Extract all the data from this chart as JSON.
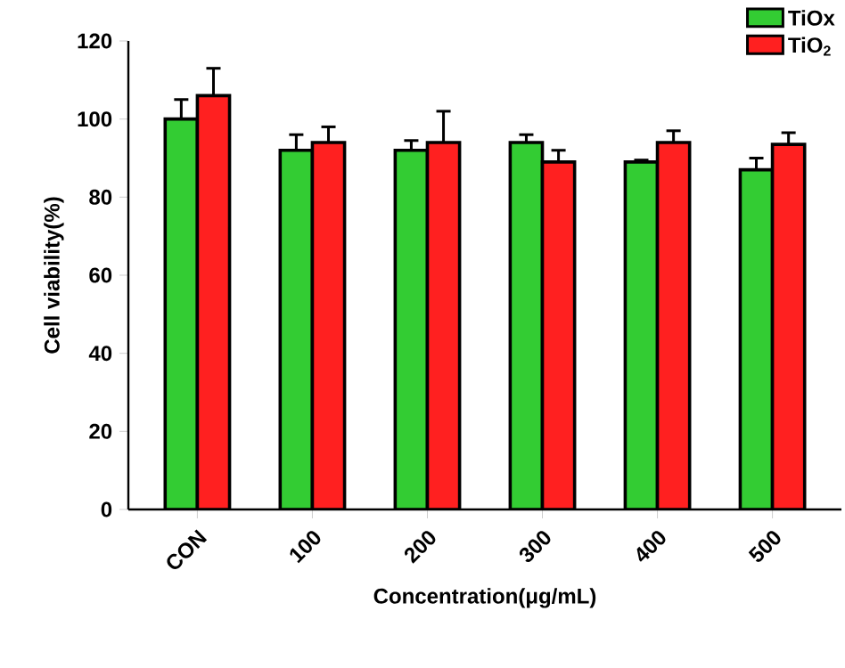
{
  "chart_data": {
    "type": "bar",
    "xlabel": "Concentration(μg/mL)",
    "ylabel": "Cell viability(%)",
    "categories": [
      "CON",
      "100",
      "200",
      "300",
      "400",
      "500"
    ],
    "series": [
      {
        "name": "TiOx",
        "color": "#33cc33",
        "values": [
          100,
          92,
          92,
          94,
          89,
          87
        ],
        "errors": [
          5,
          4,
          2.5,
          2,
          0.5,
          3
        ]
      },
      {
        "name": "TiO$_{2}$",
        "color": "#ff2020",
        "values": [
          106,
          94,
          94,
          89,
          94,
          93.5
        ],
        "errors": [
          7,
          4,
          8,
          3,
          3,
          3
        ]
      }
    ],
    "ylim": [
      0,
      120
    ],
    "yticks": [
      0,
      20,
      40,
      60,
      80,
      100,
      120
    ],
    "legend": "top right"
  }
}
